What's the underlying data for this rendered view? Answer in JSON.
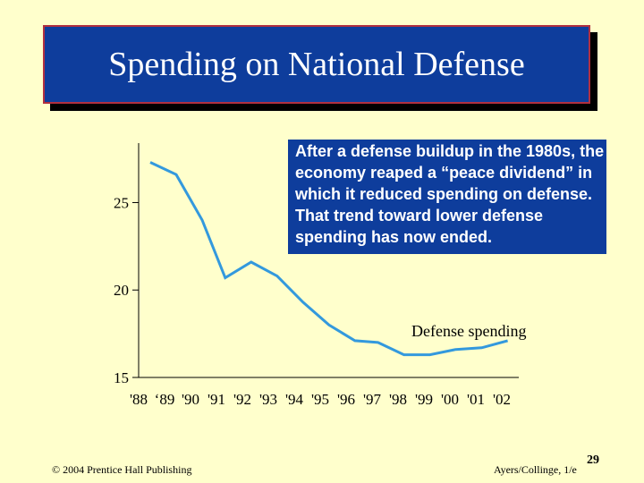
{
  "slide": {
    "title": "Spending on National Defense",
    "callout": "After a defense buildup in the 1980s, the economy reaped a “peace dividend” in which it reduced spending on defense. That trend toward lower defense spending has now ended.",
    "footer_left": "© 2004 Prentice Hall Publishing",
    "footer_right": "Ayers/Collinge, 1/e",
    "page_number": "29"
  },
  "colors": {
    "background": "#FFFFCC",
    "title_bg": "#0E3D9C",
    "line": "#3399DD"
  },
  "chart_data": {
    "type": "line",
    "title": "",
    "xlabel": "",
    "ylabel": "",
    "categories": [
      "'88",
      "‘89",
      "'90",
      "'91",
      "'92",
      "'93",
      "'94",
      "'95",
      "'96",
      "'97",
      "'98",
      "'99",
      "'00",
      "'01",
      "'02"
    ],
    "yticks": [
      15,
      20,
      25
    ],
    "ylim": [
      15,
      28.4
    ],
    "series": [
      {
        "name": "Defense spending",
        "x": [
          1987.7,
          1988.6,
          1989.5,
          1990.3,
          1991.2,
          1992.1,
          1993.0,
          1993.9,
          1994.8,
          1995.6,
          1996.5,
          1997.4,
          1998.3,
          1999.2,
          2000.1
        ],
        "values": [
          27.3,
          26.6,
          24.0,
          20.7,
          21.6,
          20.8,
          19.3,
          18.0,
          17.1,
          17.0,
          16.3,
          16.3,
          16.6,
          16.7,
          17.1
        ]
      }
    ]
  }
}
